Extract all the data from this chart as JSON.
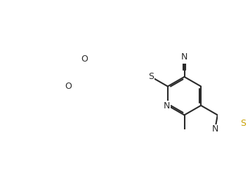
{
  "bg_color": "#ffffff",
  "bond_color": "#2a2a2a",
  "S_color": "#c8a000",
  "N_color": "#2a2a2a",
  "O_color": "#2a2a2a",
  "lw": 1.5,
  "figsize": [
    3.56,
    2.56
  ],
  "dpi": 100,
  "BL": 0.32,
  "xlim": [
    -0.05,
    1.1
  ],
  "ylim": [
    0.0,
    1.1
  ]
}
